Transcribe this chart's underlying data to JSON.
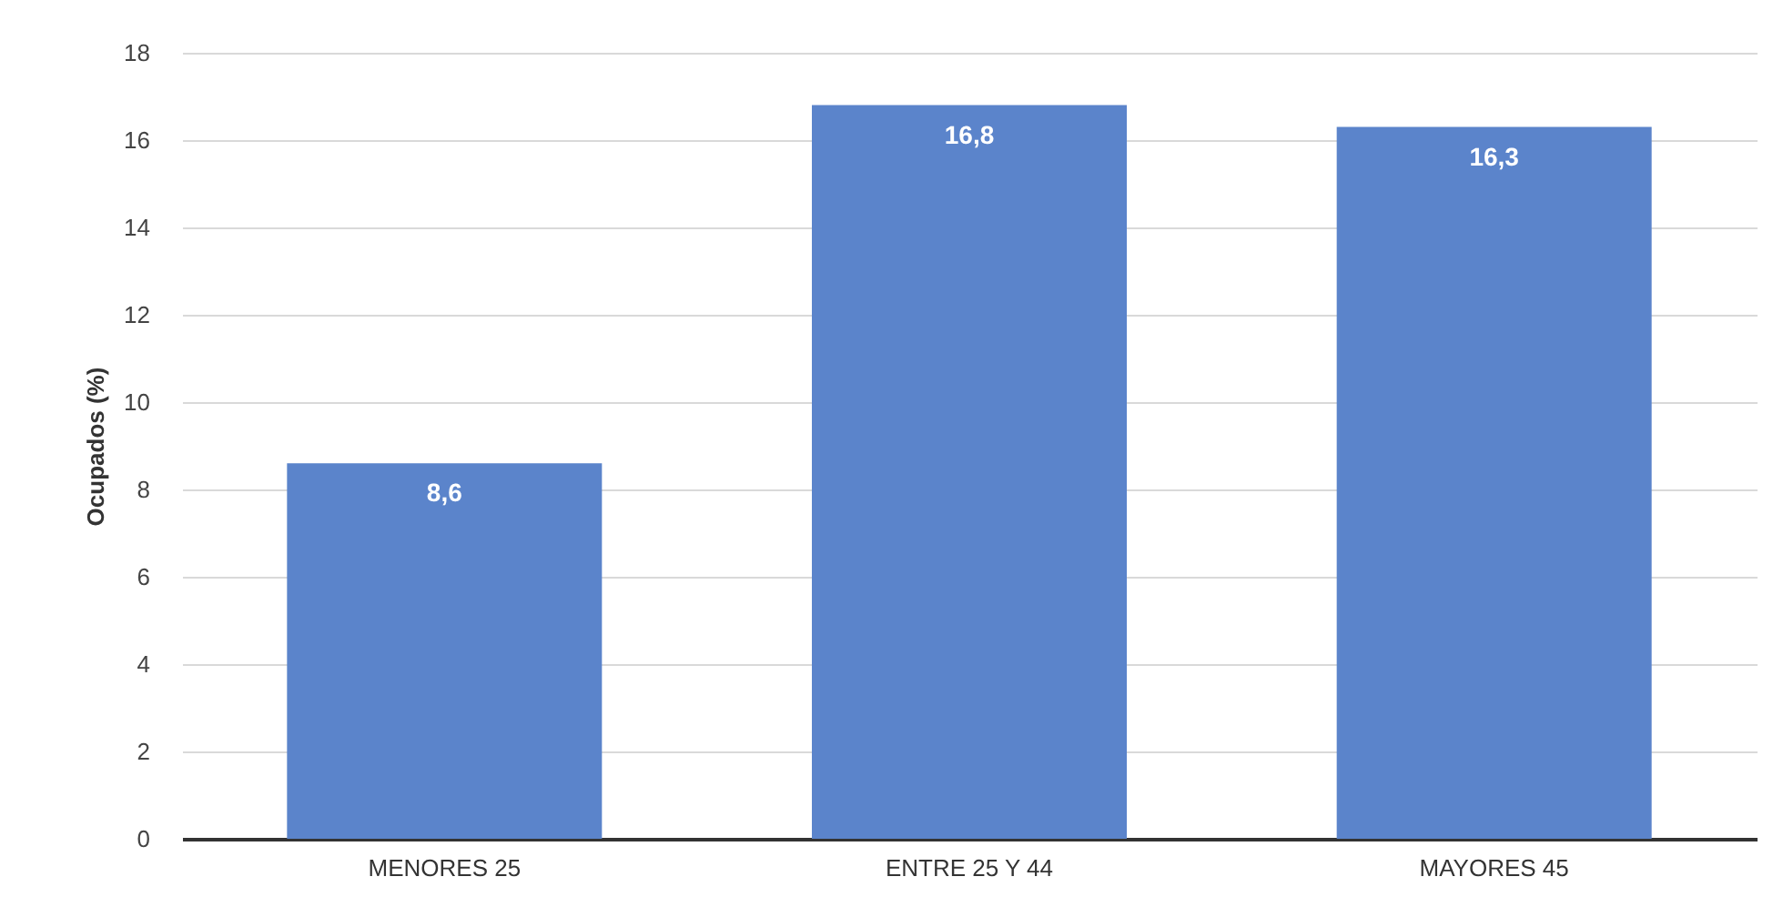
{
  "chart_data": {
    "type": "bar",
    "ylabel": "Ocupados (%)",
    "categories": [
      "MENORES 25",
      "ENTRE 25 Y 44",
      "MAYORES 45"
    ],
    "values": [
      8.6,
      16.8,
      16.3
    ],
    "value_labels": [
      "8,6",
      "16,8",
      "16,3"
    ],
    "color": "#5b84cb",
    "ylim": [
      0,
      18
    ],
    "yticks": [
      0,
      2,
      4,
      6,
      8,
      10,
      12,
      14,
      16,
      18
    ],
    "grid": "y"
  }
}
